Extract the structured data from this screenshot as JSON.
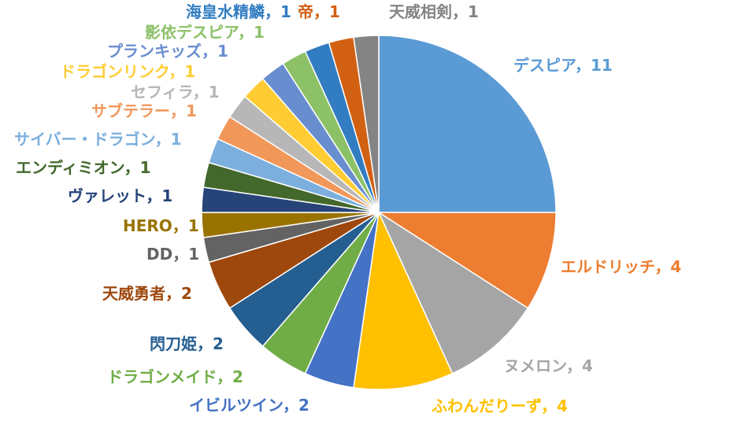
{
  "chart_data": {
    "type": "pie",
    "title": "",
    "slices": [
      {
        "label": "デスピア",
        "value": 11,
        "color": "#5B9BD5",
        "label_text": "デスピア，11"
      },
      {
        "label": "エルドリッチ",
        "value": 4,
        "color": "#ED7D31",
        "label_text": "エルドリッチ，4"
      },
      {
        "label": "ヌメロン",
        "value": 4,
        "color": "#A5A5A5",
        "label_text": "ヌメロン，4"
      },
      {
        "label": "ふわんだりーず",
        "value": 4,
        "color": "#FFC000",
        "label_text": "ふわんだりーず，4"
      },
      {
        "label": "イビルツイン",
        "value": 2,
        "color": "#4472C4",
        "label_text": "イビルツイン，2"
      },
      {
        "label": "ドラゴンメイド",
        "value": 2,
        "color": "#70AD47",
        "label_text": "ドラゴンメイド，2"
      },
      {
        "label": "閃刀姫",
        "value": 2,
        "color": "#255E91",
        "label_text": "閃刀姫，2"
      },
      {
        "label": "天威勇者",
        "value": 2,
        "color": "#9E480E",
        "label_text": "天威勇者，2"
      },
      {
        "label": "DD",
        "value": 1,
        "color": "#636363",
        "label_text": "DD，1"
      },
      {
        "label": "HERO",
        "value": 1,
        "color": "#997300",
        "label_text": "HERO，1"
      },
      {
        "label": "ヴァレット",
        "value": 1,
        "color": "#264478",
        "label_text": "ヴァレット，1"
      },
      {
        "label": "エンディミオン",
        "value": 1,
        "color": "#43682B",
        "label_text": "エンディミオン，1"
      },
      {
        "label": "サイバー・ドラゴン",
        "value": 1,
        "color": "#7CAFDD",
        "label_text": "サイバー・ドラゴン，1"
      },
      {
        "label": "サブテラー",
        "value": 1,
        "color": "#F1975A",
        "label_text": "サブテラー，1"
      },
      {
        "label": "セフィラ",
        "value": 1,
        "color": "#B7B7B7",
        "label_text": "セフィラ，1"
      },
      {
        "label": "ドラゴンリンク",
        "value": 1,
        "color": "#FFCD33",
        "label_text": "ドラゴンリンク，1"
      },
      {
        "label": "プランキッズ",
        "value": 1,
        "color": "#698ED0",
        "label_text": "プランキッズ，1"
      },
      {
        "label": "影依デスピア",
        "value": 1,
        "color": "#8CC168",
        "label_text": "影依デスピア，1"
      },
      {
        "label": "海皇水精鱗",
        "value": 1,
        "color": "#327DC2",
        "label_text": "海皇水精鱗，1"
      },
      {
        "label": "帝",
        "value": 1,
        "color": "#D26012",
        "label_text": "帝，1"
      },
      {
        "label": "天威相剣",
        "value": 1,
        "color": "#848484",
        "label_text": "天威相剣，1"
      }
    ]
  }
}
